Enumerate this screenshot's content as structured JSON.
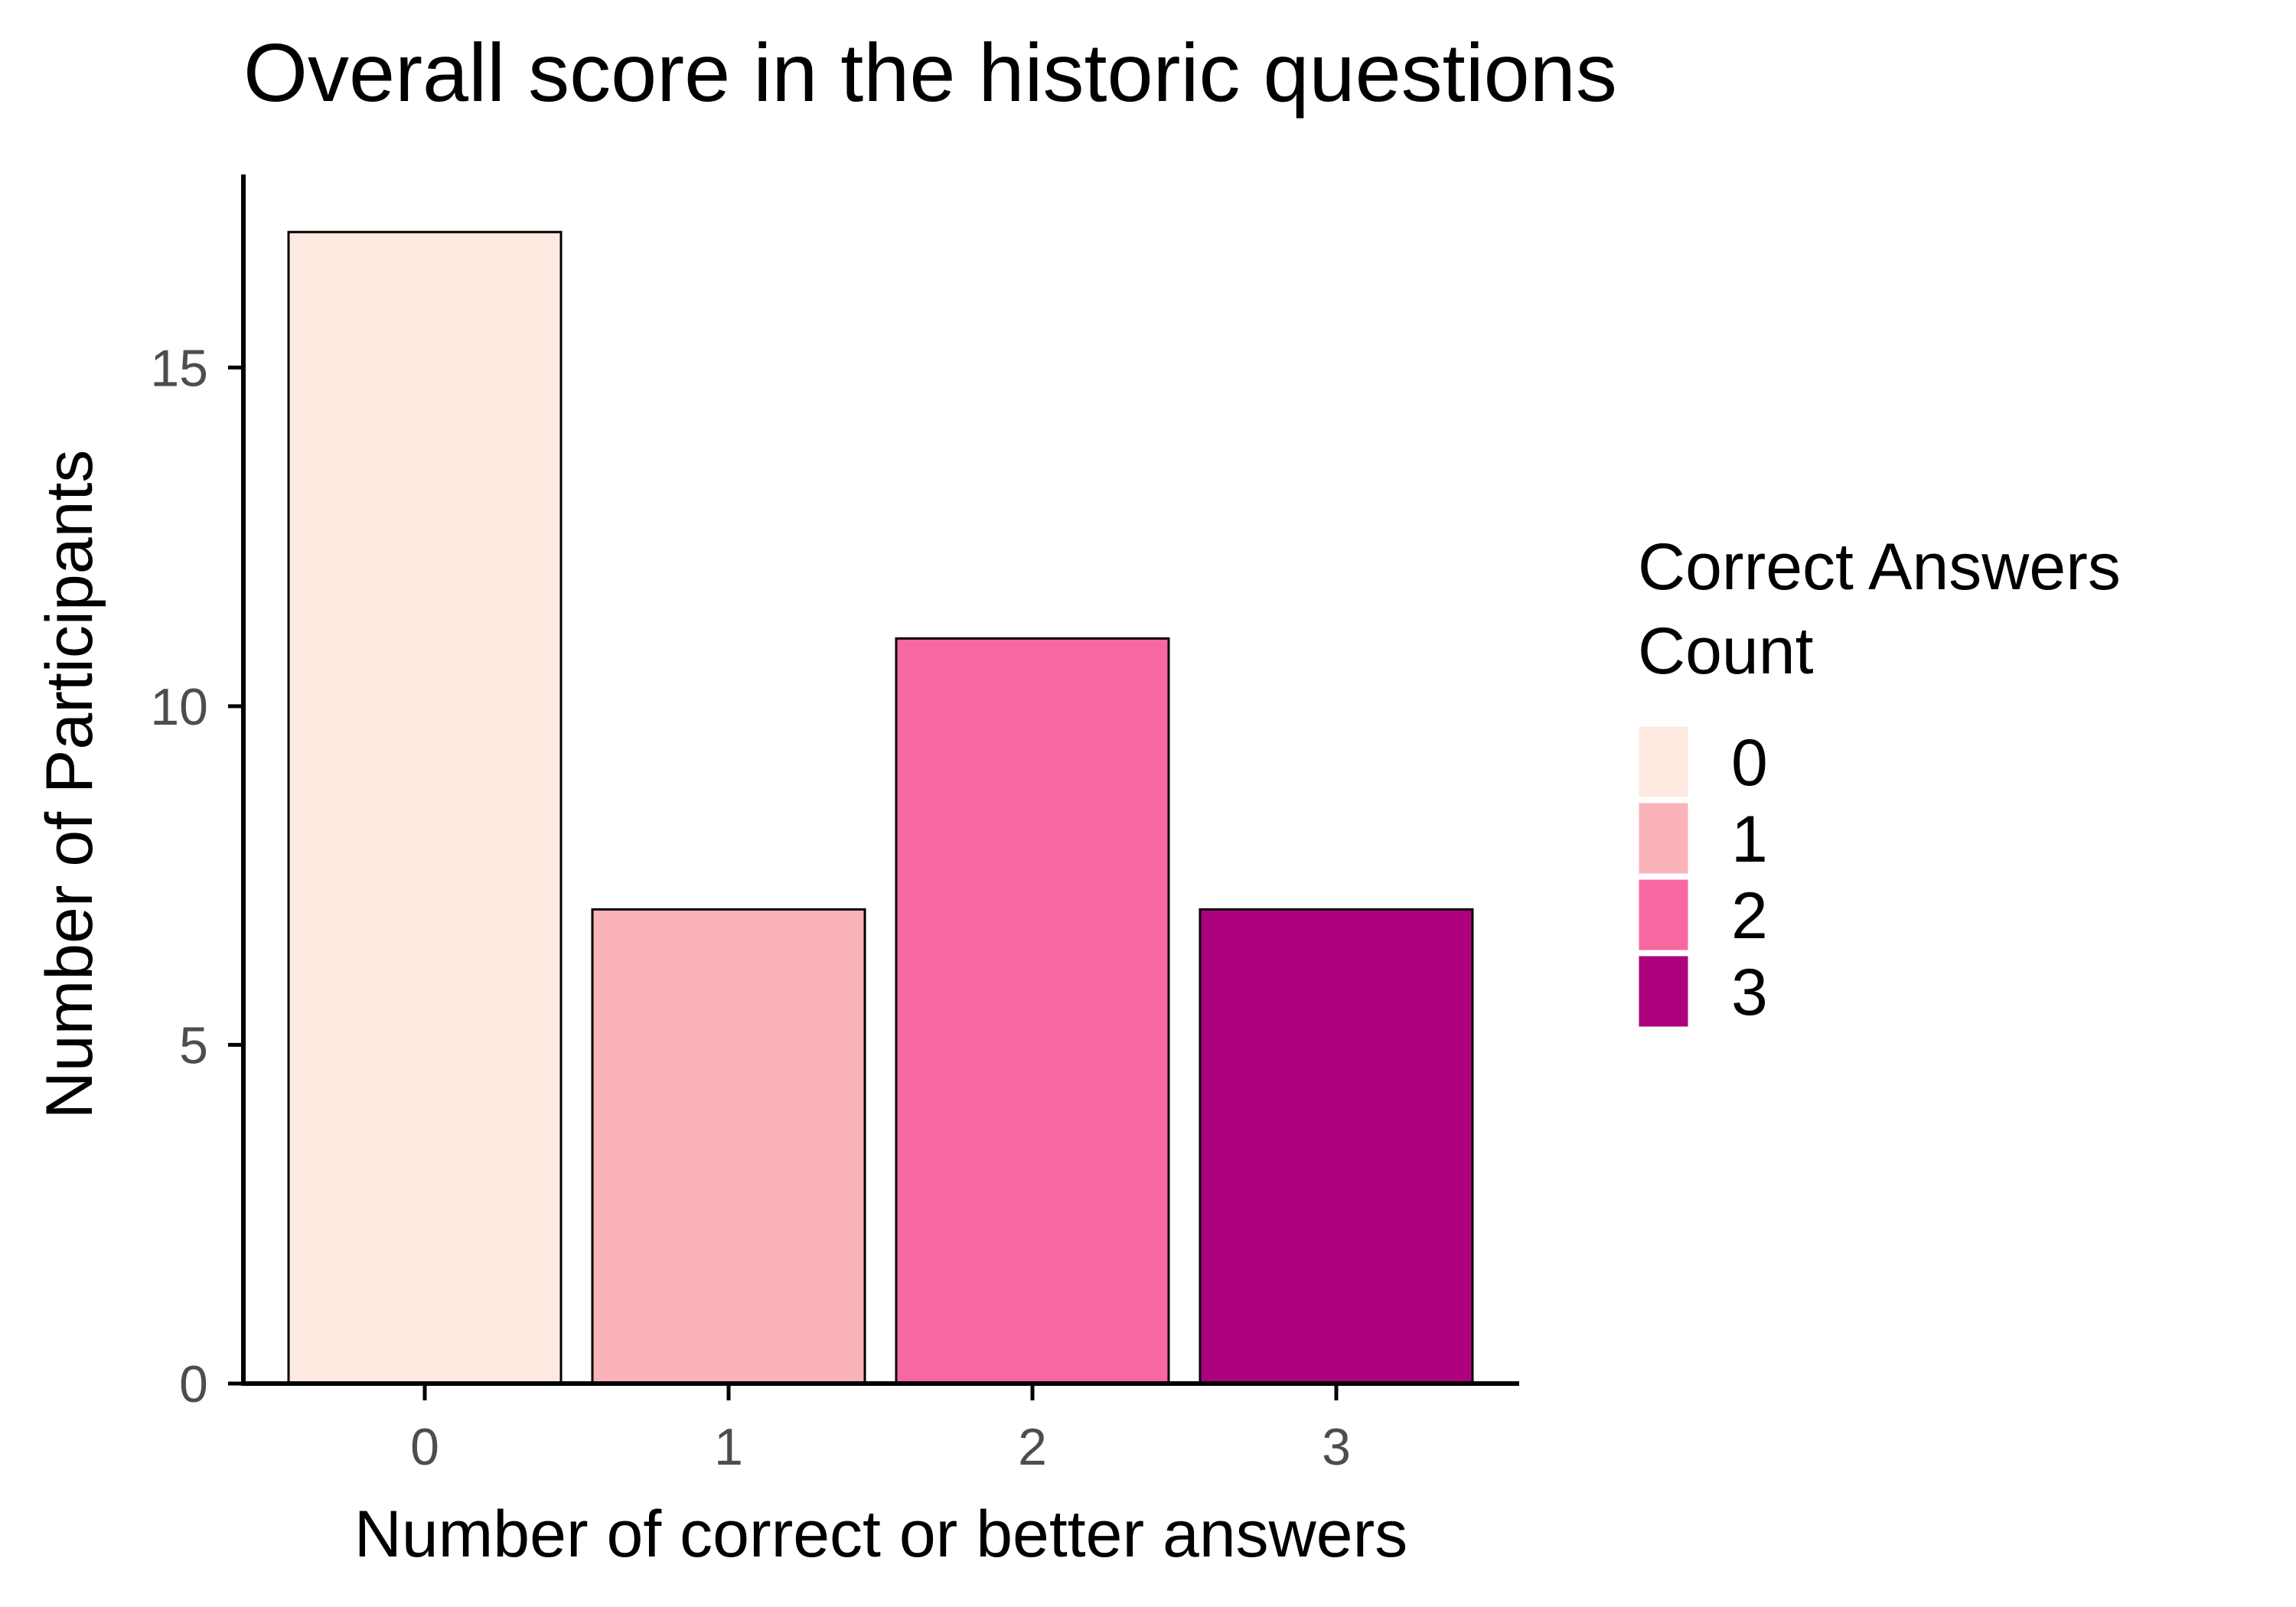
{
  "chart_data": {
    "type": "bar",
    "title": "Overall score in the historic questions",
    "xlabel": "Number of correct or better answers",
    "ylabel": "Number of Participants",
    "categories": [
      "0",
      "1",
      "2",
      "3"
    ],
    "values": [
      17,
      7,
      11,
      7
    ],
    "colors": [
      "#fee9e1",
      "#fab3b9",
      "#f768a1",
      "#ae017e"
    ],
    "bar_outline": "#000000",
    "ylim": [
      0,
      17.85
    ],
    "yticks": [
      0,
      5,
      10,
      15
    ],
    "grid": false,
    "legend": {
      "title_lines": [
        "Correct Answers",
        "Count"
      ],
      "entries": [
        "0",
        "1",
        "2",
        "3"
      ],
      "placement": "right"
    }
  }
}
